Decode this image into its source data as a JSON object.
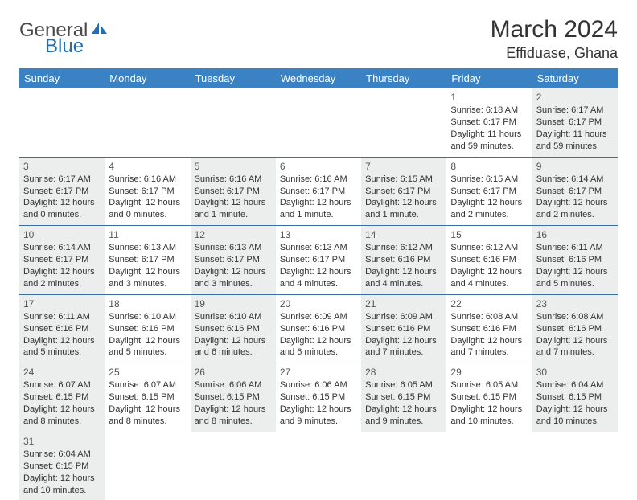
{
  "logo": {
    "text1": "General",
    "text2": "Blue"
  },
  "title": "March 2024",
  "location": "Effiduase, Ghana",
  "days": [
    "Sunday",
    "Monday",
    "Tuesday",
    "Wednesday",
    "Thursday",
    "Friday",
    "Saturday"
  ],
  "colors": {
    "header_bg": "#3b82c4",
    "header_text": "#ffffff",
    "row_border": "#3b6fa3",
    "shaded_bg": "#eceded",
    "logo_gray": "#4a4a4a",
    "logo_blue": "#1f6fb2"
  },
  "cells": [
    [
      {
        "n": "",
        "sr": "",
        "ss": "",
        "dl": ""
      },
      {
        "n": "",
        "sr": "",
        "ss": "",
        "dl": ""
      },
      {
        "n": "",
        "sr": "",
        "ss": "",
        "dl": ""
      },
      {
        "n": "",
        "sr": "",
        "ss": "",
        "dl": ""
      },
      {
        "n": "",
        "sr": "",
        "ss": "",
        "dl": ""
      },
      {
        "n": "1",
        "sr": "Sunrise: 6:18 AM",
        "ss": "Sunset: 6:17 PM",
        "dl": "Daylight: 11 hours and 59 minutes."
      },
      {
        "n": "2",
        "sr": "Sunrise: 6:17 AM",
        "ss": "Sunset: 6:17 PM",
        "dl": "Daylight: 11 hours and 59 minutes."
      }
    ],
    [
      {
        "n": "3",
        "sr": "Sunrise: 6:17 AM",
        "ss": "Sunset: 6:17 PM",
        "dl": "Daylight: 12 hours and 0 minutes."
      },
      {
        "n": "4",
        "sr": "Sunrise: 6:16 AM",
        "ss": "Sunset: 6:17 PM",
        "dl": "Daylight: 12 hours and 0 minutes."
      },
      {
        "n": "5",
        "sr": "Sunrise: 6:16 AM",
        "ss": "Sunset: 6:17 PM",
        "dl": "Daylight: 12 hours and 1 minute."
      },
      {
        "n": "6",
        "sr": "Sunrise: 6:16 AM",
        "ss": "Sunset: 6:17 PM",
        "dl": "Daylight: 12 hours and 1 minute."
      },
      {
        "n": "7",
        "sr": "Sunrise: 6:15 AM",
        "ss": "Sunset: 6:17 PM",
        "dl": "Daylight: 12 hours and 1 minute."
      },
      {
        "n": "8",
        "sr": "Sunrise: 6:15 AM",
        "ss": "Sunset: 6:17 PM",
        "dl": "Daylight: 12 hours and 2 minutes."
      },
      {
        "n": "9",
        "sr": "Sunrise: 6:14 AM",
        "ss": "Sunset: 6:17 PM",
        "dl": "Daylight: 12 hours and 2 minutes."
      }
    ],
    [
      {
        "n": "10",
        "sr": "Sunrise: 6:14 AM",
        "ss": "Sunset: 6:17 PM",
        "dl": "Daylight: 12 hours and 2 minutes."
      },
      {
        "n": "11",
        "sr": "Sunrise: 6:13 AM",
        "ss": "Sunset: 6:17 PM",
        "dl": "Daylight: 12 hours and 3 minutes."
      },
      {
        "n": "12",
        "sr": "Sunrise: 6:13 AM",
        "ss": "Sunset: 6:17 PM",
        "dl": "Daylight: 12 hours and 3 minutes."
      },
      {
        "n": "13",
        "sr": "Sunrise: 6:13 AM",
        "ss": "Sunset: 6:17 PM",
        "dl": "Daylight: 12 hours and 4 minutes."
      },
      {
        "n": "14",
        "sr": "Sunrise: 6:12 AM",
        "ss": "Sunset: 6:16 PM",
        "dl": "Daylight: 12 hours and 4 minutes."
      },
      {
        "n": "15",
        "sr": "Sunrise: 6:12 AM",
        "ss": "Sunset: 6:16 PM",
        "dl": "Daylight: 12 hours and 4 minutes."
      },
      {
        "n": "16",
        "sr": "Sunrise: 6:11 AM",
        "ss": "Sunset: 6:16 PM",
        "dl": "Daylight: 12 hours and 5 minutes."
      }
    ],
    [
      {
        "n": "17",
        "sr": "Sunrise: 6:11 AM",
        "ss": "Sunset: 6:16 PM",
        "dl": "Daylight: 12 hours and 5 minutes."
      },
      {
        "n": "18",
        "sr": "Sunrise: 6:10 AM",
        "ss": "Sunset: 6:16 PM",
        "dl": "Daylight: 12 hours and 5 minutes."
      },
      {
        "n": "19",
        "sr": "Sunrise: 6:10 AM",
        "ss": "Sunset: 6:16 PM",
        "dl": "Daylight: 12 hours and 6 minutes."
      },
      {
        "n": "20",
        "sr": "Sunrise: 6:09 AM",
        "ss": "Sunset: 6:16 PM",
        "dl": "Daylight: 12 hours and 6 minutes."
      },
      {
        "n": "21",
        "sr": "Sunrise: 6:09 AM",
        "ss": "Sunset: 6:16 PM",
        "dl": "Daylight: 12 hours and 7 minutes."
      },
      {
        "n": "22",
        "sr": "Sunrise: 6:08 AM",
        "ss": "Sunset: 6:16 PM",
        "dl": "Daylight: 12 hours and 7 minutes."
      },
      {
        "n": "23",
        "sr": "Sunrise: 6:08 AM",
        "ss": "Sunset: 6:16 PM",
        "dl": "Daylight: 12 hours and 7 minutes."
      }
    ],
    [
      {
        "n": "24",
        "sr": "Sunrise: 6:07 AM",
        "ss": "Sunset: 6:15 PM",
        "dl": "Daylight: 12 hours and 8 minutes."
      },
      {
        "n": "25",
        "sr": "Sunrise: 6:07 AM",
        "ss": "Sunset: 6:15 PM",
        "dl": "Daylight: 12 hours and 8 minutes."
      },
      {
        "n": "26",
        "sr": "Sunrise: 6:06 AM",
        "ss": "Sunset: 6:15 PM",
        "dl": "Daylight: 12 hours and 8 minutes."
      },
      {
        "n": "27",
        "sr": "Sunrise: 6:06 AM",
        "ss": "Sunset: 6:15 PM",
        "dl": "Daylight: 12 hours and 9 minutes."
      },
      {
        "n": "28",
        "sr": "Sunrise: 6:05 AM",
        "ss": "Sunset: 6:15 PM",
        "dl": "Daylight: 12 hours and 9 minutes."
      },
      {
        "n": "29",
        "sr": "Sunrise: 6:05 AM",
        "ss": "Sunset: 6:15 PM",
        "dl": "Daylight: 12 hours and 10 minutes."
      },
      {
        "n": "30",
        "sr": "Sunrise: 6:04 AM",
        "ss": "Sunset: 6:15 PM",
        "dl": "Daylight: 12 hours and 10 minutes."
      }
    ],
    [
      {
        "n": "31",
        "sr": "Sunrise: 6:04 AM",
        "ss": "Sunset: 6:15 PM",
        "dl": "Daylight: 12 hours and 10 minutes."
      },
      {
        "n": "",
        "sr": "",
        "ss": "",
        "dl": ""
      },
      {
        "n": "",
        "sr": "",
        "ss": "",
        "dl": ""
      },
      {
        "n": "",
        "sr": "",
        "ss": "",
        "dl": ""
      },
      {
        "n": "",
        "sr": "",
        "ss": "",
        "dl": ""
      },
      {
        "n": "",
        "sr": "",
        "ss": "",
        "dl": ""
      },
      {
        "n": "",
        "sr": "",
        "ss": "",
        "dl": ""
      }
    ]
  ]
}
